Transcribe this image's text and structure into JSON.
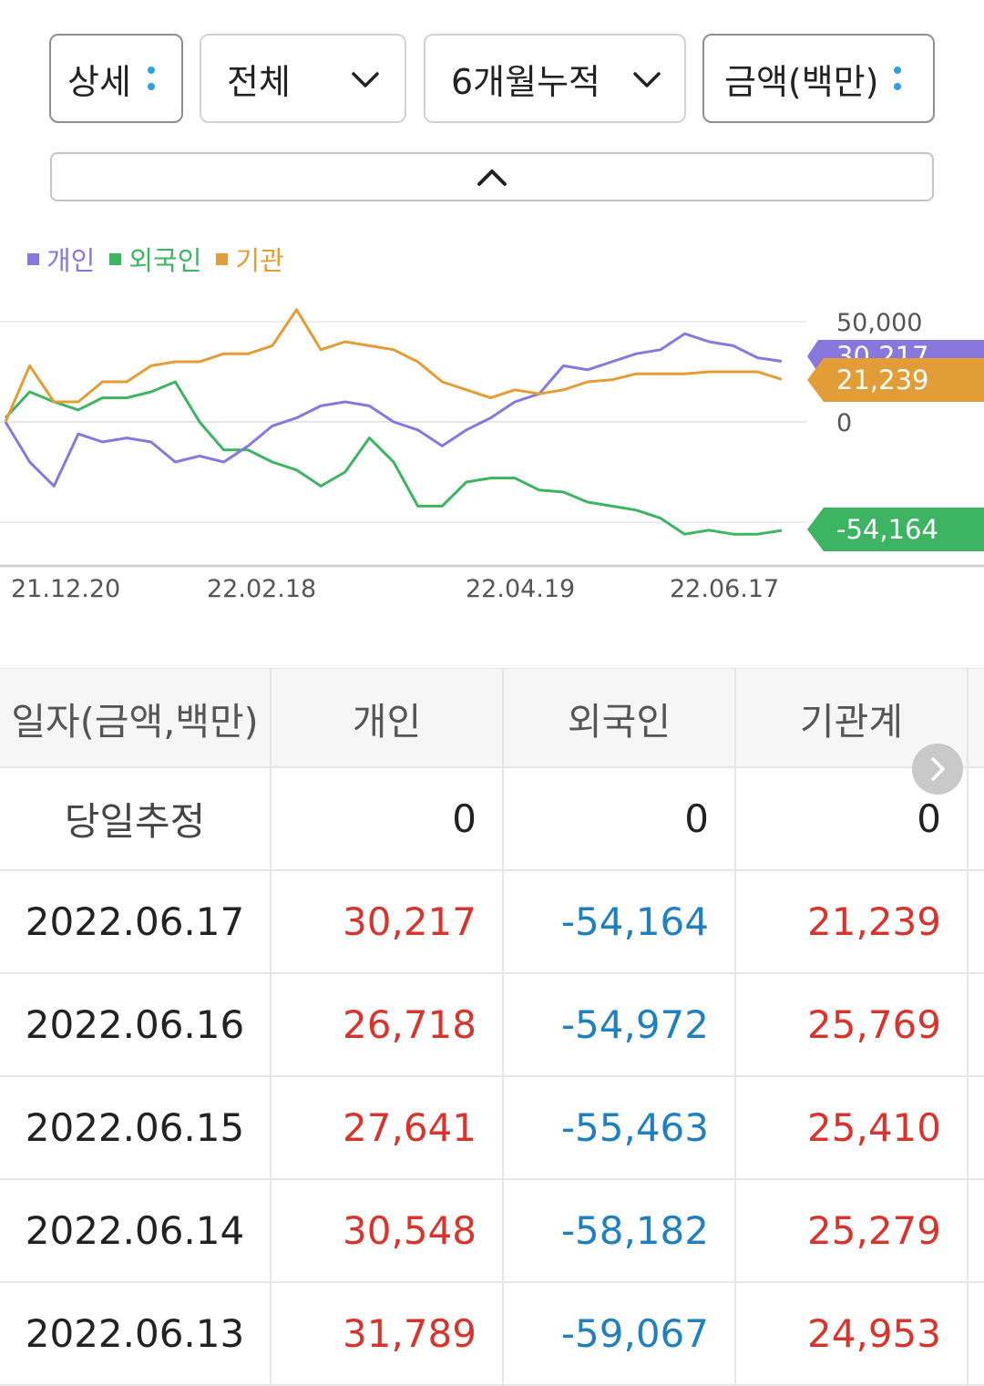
{
  "filters": {
    "view_mode": "상세",
    "scope": "전체",
    "period": "6개월누적",
    "unit": "금액(백만)",
    "icons": {
      "more": "vertical-dots-icon",
      "dropdown": "chevron-down-icon",
      "collapse": "chevron-up-icon"
    }
  },
  "colors": {
    "individual": "#8877dd",
    "foreign": "#3db462",
    "institution": "#e29d36",
    "positive": "#d8342e",
    "negative": "#1f7fbf"
  },
  "chart_data": {
    "type": "line",
    "legend_position": "top-left",
    "x_labels": [
      "21.12.20",
      "22.02.18",
      "22.04.19",
      "22.06.17"
    ],
    "y_ticks": [
      "50,000",
      "0"
    ],
    "ylim": [
      -60000,
      72000
    ],
    "grid": true,
    "series": [
      {
        "name": "개인",
        "values": [
          0,
          -20000,
          -32000,
          -6000,
          -10000,
          -8000,
          -10000,
          -20000,
          -17000,
          -20000,
          -12000,
          -2000,
          2000,
          8000,
          10000,
          8000,
          0,
          -4000,
          -12000,
          -4000,
          2000,
          10000,
          14000,
          28000,
          26000,
          30000,
          34000,
          36000,
          44000,
          40000,
          38000,
          32000,
          30217
        ]
      },
      {
        "name": "외국인",
        "values": [
          2000,
          15000,
          10000,
          6000,
          12000,
          12000,
          15000,
          20000,
          0,
          -14000,
          -14000,
          -20000,
          -24000,
          -32000,
          -25000,
          -8000,
          -20000,
          -42000,
          -42000,
          -30000,
          -28000,
          -28000,
          -34000,
          -35000,
          -40000,
          -42000,
          -44000,
          -48000,
          -56000,
          -54000,
          -56000,
          -56000,
          -54164
        ]
      },
      {
        "name": "기관",
        "values": [
          0,
          28000,
          10000,
          10000,
          20000,
          20000,
          28000,
          30000,
          30000,
          34000,
          34000,
          38000,
          56000,
          36000,
          40000,
          38000,
          36000,
          30000,
          20000,
          16000,
          12000,
          16000,
          14000,
          16000,
          20000,
          21000,
          24000,
          24000,
          24000,
          25000,
          25000,
          25000,
          21239
        ]
      }
    ],
    "last_values": [
      "30,217",
      "21,239",
      "-54,164"
    ]
  },
  "table": {
    "headers": [
      "일자(금액,백만)",
      "개인",
      "외국인",
      "기관계"
    ],
    "rows": [
      [
        "당일추정",
        "0",
        "0",
        "0"
      ],
      [
        "2022.06.17",
        "30,217",
        "-54,164",
        "21,239"
      ],
      [
        "2022.06.16",
        "26,718",
        "-54,972",
        "25,769"
      ],
      [
        "2022.06.15",
        "27,641",
        "-55,463",
        "25,410"
      ],
      [
        "2022.06.14",
        "30,548",
        "-58,182",
        "25,279"
      ],
      [
        "2022.06.13",
        "31,789",
        "-59,067",
        "24,953"
      ]
    ]
  }
}
